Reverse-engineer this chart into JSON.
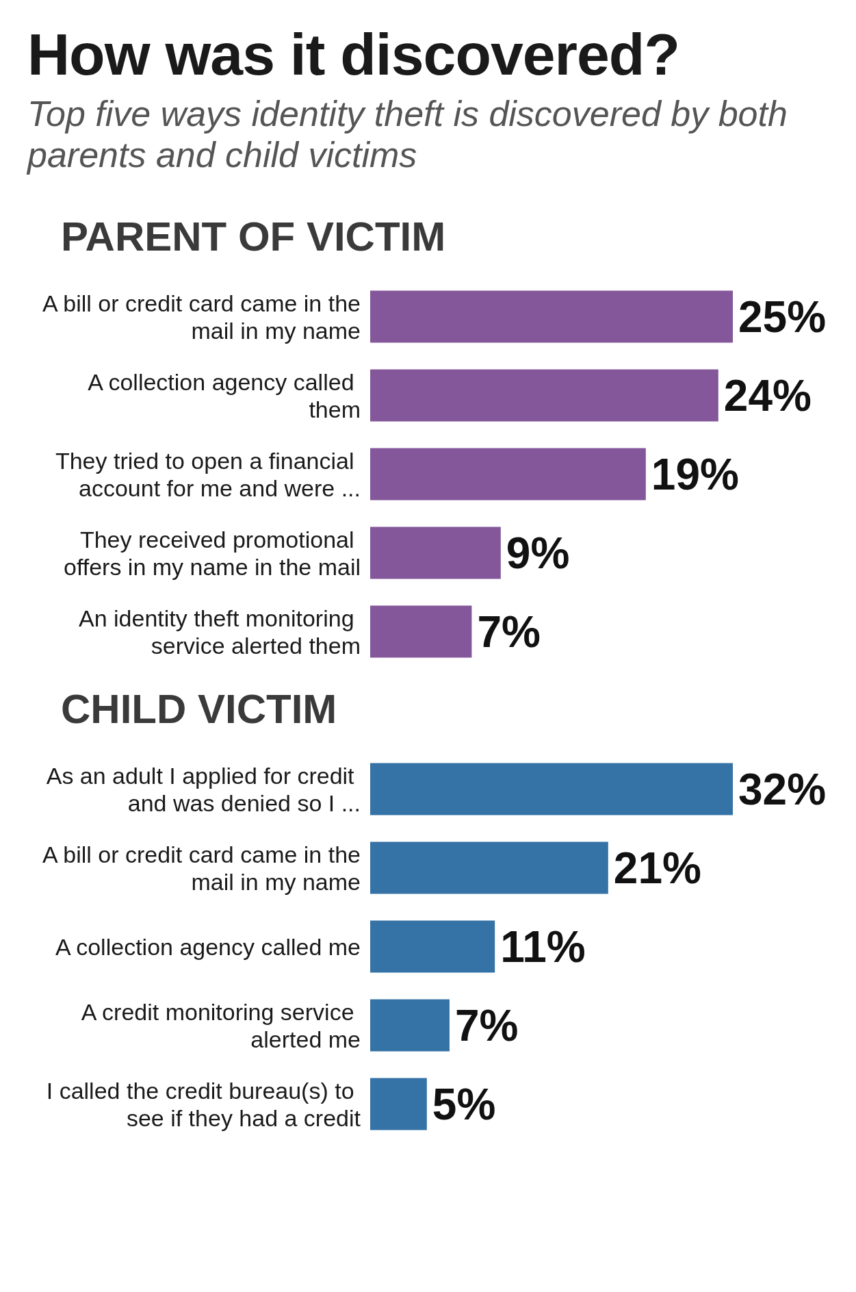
{
  "chart_data": [
    {
      "type": "other",
      "title": "How was it discovered?",
      "subtitle": "Top five ways identity theft is discovered by both parents and child victims"
    },
    {
      "type": "bar",
      "orientation": "horizontal",
      "title": "PARENT OF VICTIM",
      "categories": [
        "A bill or credit card came in the mail in my name",
        "A collection agency called them",
        "They tried to open a financial account for me and were ...",
        "They received promotional offers in my name in the mail",
        "An identity theft monitoring service alerted them"
      ],
      "values": [
        25,
        24,
        19,
        9,
        7
      ],
      "value_labels": [
        "25%",
        "24%",
        "19%",
        "9%",
        "7%"
      ],
      "color": "#83579a"
    },
    {
      "type": "bar",
      "orientation": "horizontal",
      "title": "CHILD VICTIM",
      "categories": [
        "As an adult I applied for credit and was denied so I ...",
        "A bill or credit card came in the mail in my name",
        "A collection agency called me",
        "A credit monitoring service alerted me",
        "I called the credit bureau(s) to see if they had a credit"
      ],
      "values": [
        32,
        21,
        11,
        7,
        5
      ],
      "value_labels": [
        "32%",
        "21%",
        "11%",
        "7%",
        "5%"
      ],
      "color": "#3572a5"
    }
  ]
}
